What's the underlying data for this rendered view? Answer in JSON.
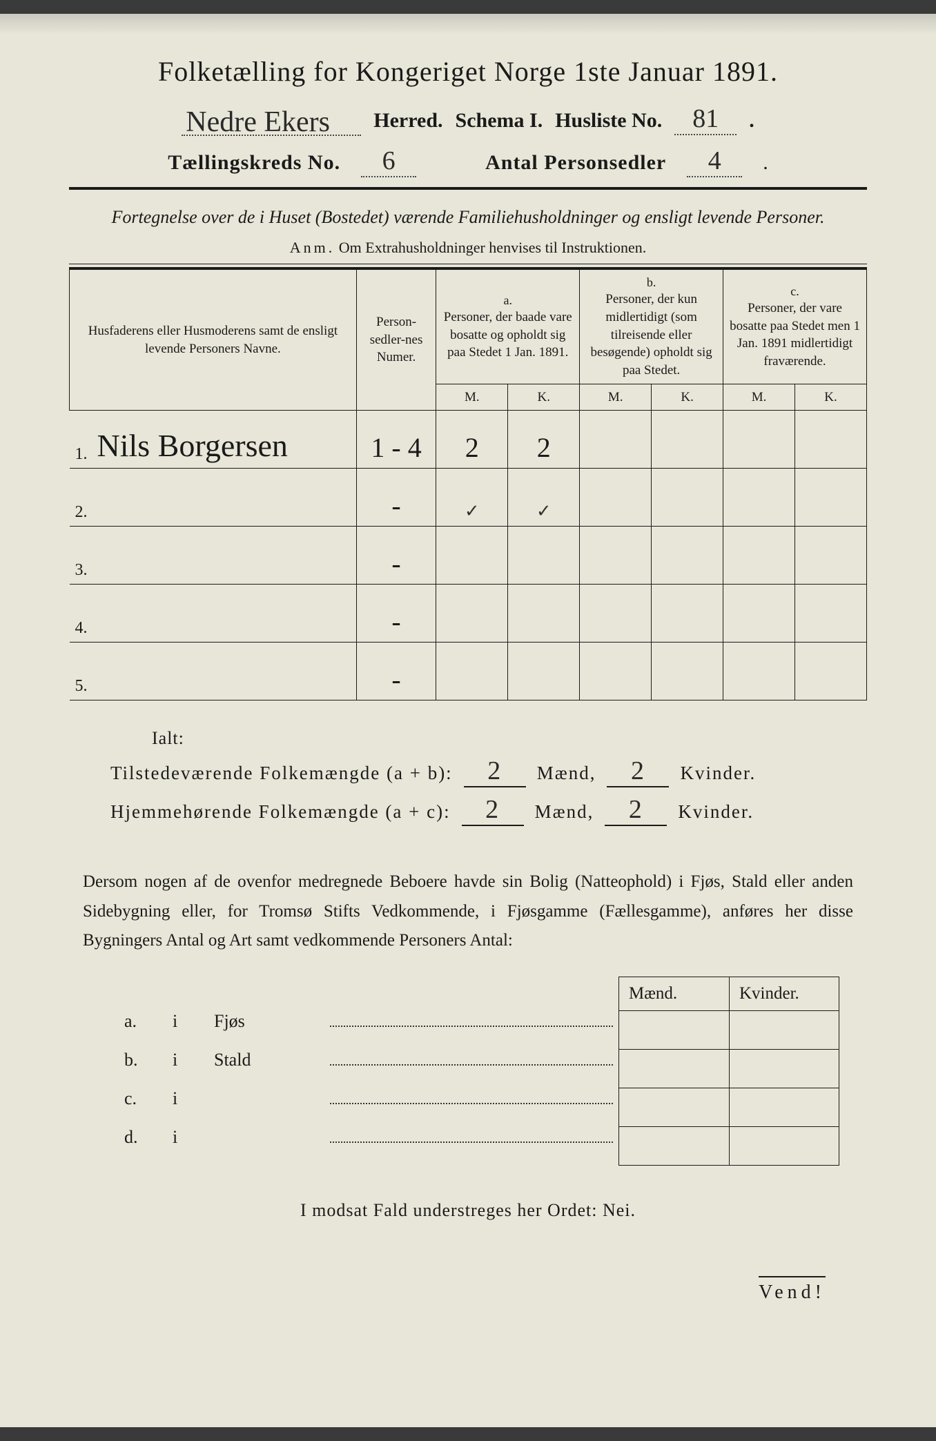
{
  "title": "Folketælling for Kongeriget Norge 1ste Januar 1891.",
  "header": {
    "herred_value": "Nedre Ekers",
    "herred_label": "Herred.",
    "schema_label": "Schema I.",
    "husliste_label": "Husliste No.",
    "husliste_value": "81",
    "kreds_label": "Tællingskreds No.",
    "kreds_value": "6",
    "antal_label": "Antal Personsedler",
    "antal_value": "4"
  },
  "subtitle": "Fortegnelse over de i Huset (Bostedet) værende Familiehusholdninger og ensligt levende Personer.",
  "anm_label": "Anm.",
  "anm_text": "Om Extrahusholdninger henvises til Instruktionen.",
  "table": {
    "col_name": "Husfaderens eller Husmoderens samt de ensligt levende Personers Navne.",
    "col_num": "Person-sedler-nes Numer.",
    "col_a_top": "a.",
    "col_a": "Personer, der baade vare bosatte og opholdt sig paa Stedet 1 Jan. 1891.",
    "col_b_top": "b.",
    "col_b": "Personer, der kun midlertidigt (som tilreisende eller besøgende) opholdt sig paa Stedet.",
    "col_c_top": "c.",
    "col_c": "Personer, der vare bosatte paa Stedet men 1 Jan. 1891 midlertidigt fraværende.",
    "m": "M.",
    "k": "K.",
    "rows": [
      {
        "n": "1.",
        "name": "Nils Borgersen",
        "num": "1 - 4",
        "a_m": "2",
        "a_k": "2",
        "b_m": "",
        "b_k": "",
        "c_m": "",
        "c_k": ""
      },
      {
        "n": "2.",
        "name": "",
        "num": "-",
        "a_m": "✓",
        "a_k": "✓",
        "b_m": "",
        "b_k": "",
        "c_m": "",
        "c_k": ""
      },
      {
        "n": "3.",
        "name": "",
        "num": "-",
        "a_m": "",
        "a_k": "",
        "b_m": "",
        "b_k": "",
        "c_m": "",
        "c_k": ""
      },
      {
        "n": "4.",
        "name": "",
        "num": "-",
        "a_m": "",
        "a_k": "",
        "b_m": "",
        "b_k": "",
        "c_m": "",
        "c_k": ""
      },
      {
        "n": "5.",
        "name": "",
        "num": "-",
        "a_m": "",
        "a_k": "",
        "b_m": "",
        "b_k": "",
        "c_m": "",
        "c_k": ""
      }
    ]
  },
  "totals": {
    "ialt": "Ialt:",
    "line1_label": "Tilstedeværende Folkemængde (a + b):",
    "line2_label": "Hjemmehørende Folkemængde (a + c):",
    "maend": "Mænd,",
    "kvinder": "Kvinder.",
    "l1_m": "2",
    "l1_k": "2",
    "l2_m": "2",
    "l2_k": "2"
  },
  "para": "Dersom nogen af de ovenfor medregnede Beboere havde sin Bolig (Natteophold) i Fjøs, Stald eller anden Sidebygning eller, for Tromsø Stifts Vedkommende, i Fjøsgamme (Fællesgamme), anføres her disse Bygningers Antal og Art samt vedkommende Personers Antal:",
  "buildings": {
    "maend": "Mænd.",
    "kvinder": "Kvinder.",
    "rows": [
      {
        "lbl": "a.",
        "i": "i",
        "name": "Fjøs"
      },
      {
        "lbl": "b.",
        "i": "i",
        "name": "Stald"
      },
      {
        "lbl": "c.",
        "i": "i",
        "name": ""
      },
      {
        "lbl": "d.",
        "i": "i",
        "name": ""
      }
    ]
  },
  "modsat": "I modsat Fald understreges her Ordet: Nei.",
  "vend": "Vend!",
  "colors": {
    "paper": "#e8e6d8",
    "ink": "#1a1a1a",
    "pencil": "#2a2a2a"
  }
}
